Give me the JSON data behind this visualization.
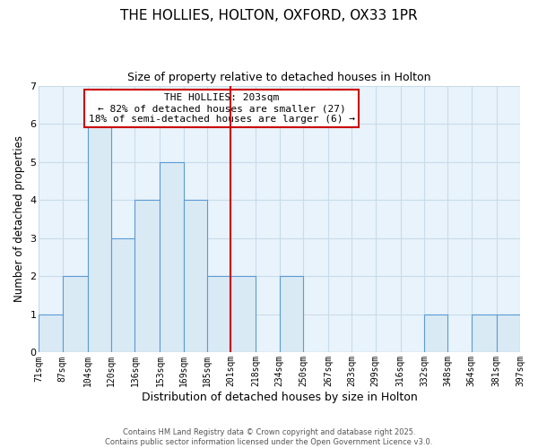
{
  "title": "THE HOLLIES, HOLTON, OXFORD, OX33 1PR",
  "subtitle": "Size of property relative to detached houses in Holton",
  "xlabel": "Distribution of detached houses by size in Holton",
  "ylabel": "Number of detached properties",
  "bar_color": "#daeaf5",
  "bar_edge_color": "#5b9bd5",
  "background_color": "#e8f3fb",
  "grid_color": "#c8dcea",
  "bin_edges": [
    71,
    87,
    104,
    120,
    136,
    153,
    169,
    185,
    201,
    218,
    234,
    250,
    267,
    283,
    299,
    316,
    332,
    348,
    364,
    381,
    397
  ],
  "bin_labels": [
    "71sqm",
    "87sqm",
    "104sqm",
    "120sqm",
    "136sqm",
    "153sqm",
    "169sqm",
    "185sqm",
    "201sqm",
    "218sqm",
    "234sqm",
    "250sqm",
    "267sqm",
    "283sqm",
    "299sqm",
    "316sqm",
    "332sqm",
    "348sqm",
    "364sqm",
    "381sqm",
    "397sqm"
  ],
  "counts": [
    1,
    2,
    6,
    3,
    4,
    5,
    4,
    2,
    2,
    0,
    2,
    0,
    0,
    0,
    0,
    0,
    1,
    0,
    1,
    1
  ],
  "vline_x": 201,
  "vline_color": "#cc0000",
  "annotation_title": "THE HOLLIES: 203sqm",
  "annotation_line1": "← 82% of detached houses are smaller (27)",
  "annotation_line2": "18% of semi-detached houses are larger (6) →",
  "ylim": [
    0,
    7
  ],
  "yticks": [
    0,
    1,
    2,
    3,
    4,
    5,
    6,
    7
  ],
  "footnote1": "Contains HM Land Registry data © Crown copyright and database right 2025.",
  "footnote2": "Contains public sector information licensed under the Open Government Licence v3.0."
}
